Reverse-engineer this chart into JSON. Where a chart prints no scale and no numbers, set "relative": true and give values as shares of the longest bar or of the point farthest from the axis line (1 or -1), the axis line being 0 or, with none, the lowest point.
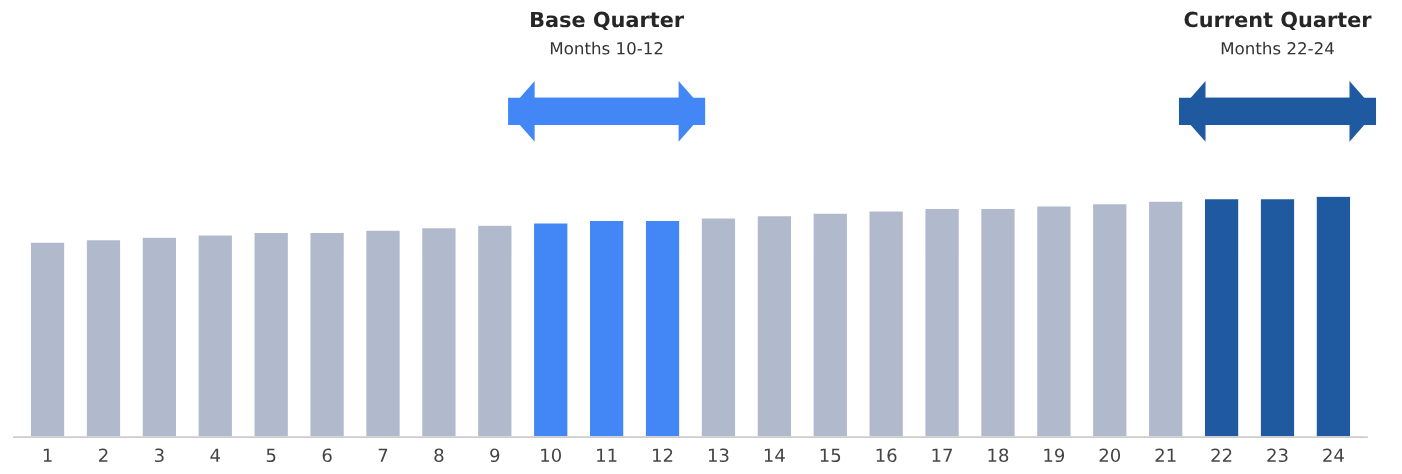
{
  "chart_data": {
    "type": "bar",
    "relative": true,
    "categories": [
      "1",
      "2",
      "3",
      "4",
      "5",
      "6",
      "7",
      "8",
      "9",
      "10",
      "11",
      "12",
      "13",
      "14",
      "15",
      "16",
      "17",
      "18",
      "19",
      "20",
      "21",
      "22",
      "23",
      "24"
    ],
    "values": [
      0.81,
      0.82,
      0.83,
      0.84,
      0.85,
      0.85,
      0.86,
      0.87,
      0.88,
      0.89,
      0.9,
      0.9,
      0.91,
      0.92,
      0.93,
      0.94,
      0.95,
      0.95,
      0.96,
      0.97,
      0.98,
      0.99,
      0.99,
      1.0
    ],
    "colors": [
      "#b0bacc",
      "#b0bacc",
      "#b0bacc",
      "#b0bacc",
      "#b0bacc",
      "#b0bacc",
      "#b0bacc",
      "#b0bacc",
      "#b0bacc",
      "#4287f5",
      "#4287f5",
      "#4287f5",
      "#b0bacc",
      "#b0bacc",
      "#b0bacc",
      "#b0bacc",
      "#b0bacc",
      "#b0bacc",
      "#b0bacc",
      "#b0bacc",
      "#b0bacc",
      "#1f5aa0",
      "#1f5aa0",
      "#1f5aa0"
    ],
    "annotations": [
      "Base Quarter",
      "Months 10-12",
      "Current Quarter",
      "Months 22-24"
    ],
    "grid": false,
    "legend": false
  }
}
